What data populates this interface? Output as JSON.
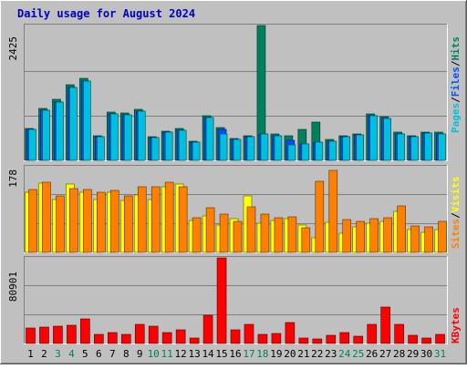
{
  "title": "Daily usage for August 2024",
  "colors": {
    "background": "#c0c0c0",
    "title": "#0000c0",
    "pages": "#00c0e0",
    "files": "#0050ff",
    "hits": "#00805c",
    "visits": "#ffff00",
    "sites": "#ff8000",
    "kbytes": "#ff0000",
    "weekend_label": "#00805c"
  },
  "chart_data": [
    {
      "type": "bar",
      "name": "hits-files-pages",
      "categories": [
        "1",
        "2",
        "3",
        "4",
        "5",
        "6",
        "7",
        "8",
        "9",
        "10",
        "11",
        "12",
        "13",
        "14",
        "15",
        "16",
        "17",
        "18",
        "19",
        "20",
        "21",
        "22",
        "23",
        "24",
        "25",
        "26",
        "27",
        "28",
        "29",
        "30",
        "31"
      ],
      "ymax_label": "2425",
      "ylim": [
        0,
        2425
      ],
      "legend": [
        "Pages",
        "/",
        "Files",
        "/",
        "Hits"
      ],
      "series": [
        {
          "name": "Hits",
          "values": [
            580,
            940,
            1090,
            1360,
            1470,
            440,
            870,
            850,
            920,
            430,
            530,
            570,
            350,
            810,
            590,
            400,
            450,
            2425,
            470,
            440,
            560,
            680,
            370,
            450,
            480,
            840,
            790,
            500,
            440,
            510,
            500
          ]
        },
        {
          "name": "Files",
          "values": [
            550,
            900,
            1050,
            1310,
            1420,
            420,
            830,
            820,
            880,
            410,
            510,
            540,
            330,
            770,
            550,
            380,
            430,
            480,
            450,
            360,
            300,
            330,
            350,
            430,
            460,
            800,
            760,
            480,
            420,
            490,
            470
          ]
        },
        {
          "name": "Pages",
          "values": [
            550,
            900,
            1050,
            1310,
            1420,
            420,
            830,
            820,
            880,
            410,
            510,
            540,
            330,
            770,
            470,
            380,
            430,
            480,
            450,
            280,
            300,
            330,
            350,
            430,
            460,
            800,
            760,
            480,
            420,
            490,
            470
          ]
        }
      ]
    },
    {
      "type": "bar",
      "name": "visits-sites",
      "ymax_label": "178",
      "ylim": [
        0,
        178
      ],
      "legend": [
        "Sites",
        "/",
        "Visits"
      ],
      "series": [
        {
          "name": "Visits",
          "values": [
            125,
            143,
            110,
            142,
            125,
            110,
            125,
            108,
            120,
            110,
            137,
            142,
            66,
            75,
            57,
            70,
            118,
            60,
            66,
            70,
            56,
            30,
            63,
            40,
            53,
            60,
            64,
            85,
            48,
            42,
            48
          ]
        },
        {
          "name": "Sites",
          "values": [
            130,
            145,
            118,
            132,
            130,
            125,
            128,
            118,
            136,
            136,
            146,
            137,
            72,
            92,
            80,
            65,
            94,
            80,
            72,
            74,
            52,
            148,
            170,
            69,
            64,
            71,
            72,
            96,
            55,
            53,
            65
          ]
        }
      ]
    },
    {
      "type": "bar",
      "name": "kbytes",
      "ymax_label": "80901",
      "ylim": [
        0,
        80901
      ],
      "legend": [
        "KBytes"
      ],
      "series": [
        {
          "name": "KBytes",
          "values": [
            14500,
            15800,
            16000,
            17500,
            23500,
            9000,
            10500,
            9000,
            18000,
            16000,
            10500,
            12500,
            4900,
            27000,
            80901,
            12500,
            18500,
            8300,
            9300,
            20000,
            5300,
            4400,
            7800,
            10000,
            7000,
            18500,
            34000,
            18000,
            7800,
            5300,
            9000
          ]
        }
      ]
    }
  ],
  "xaxis": {
    "labels": [
      "1",
      "2",
      "3",
      "4",
      "5",
      "6",
      "7",
      "8",
      "9",
      "10",
      "11",
      "12",
      "13",
      "14",
      "15",
      "16",
      "17",
      "18",
      "19",
      "20",
      "21",
      "22",
      "23",
      "24",
      "25",
      "26",
      "27",
      "28",
      "29",
      "30",
      "31"
    ],
    "weekend": [
      false,
      false,
      true,
      true,
      false,
      false,
      false,
      false,
      false,
      true,
      true,
      false,
      false,
      false,
      false,
      false,
      true,
      true,
      false,
      false,
      false,
      false,
      false,
      true,
      true,
      false,
      false,
      false,
      false,
      false,
      true
    ]
  }
}
